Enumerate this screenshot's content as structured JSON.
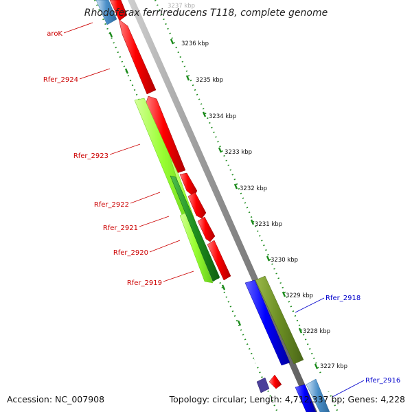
{
  "title": "Rhodoferax ferrireducens T118, complete genome",
  "footer": {
    "accession": "Accession: NC_007908",
    "topology": "Topology: circular; Length: 4,712,337 bp; Genes: 4,228"
  },
  "scale_labels": [
    "3237 kbp",
    "3236 kbp",
    "3235 kbp",
    "3234 kbp",
    "3233 kbp",
    "3232 kbp",
    "3231 kbp",
    "3230 kbp",
    "3229 kbp",
    "3228 kbp",
    "3227 kbp"
  ],
  "gene_labels": {
    "arok": "aroK",
    "rfer_2924": "Rfer_2924",
    "rfer_2923": "Rfer_2923",
    "rfer_2922": "Rfer_2922",
    "rfer_2921": "Rfer_2921",
    "rfer_2920": "Rfer_2920",
    "rfer_2919": "Rfer_2919",
    "rfer_2918": "Rfer_2918",
    "rfer_2916": "Rfer_2916"
  },
  "colors": {
    "red": "#ff0000",
    "lime": "#99ff33",
    "green": "#1e8f1e",
    "blue": "#0000ff",
    "olive": "#6b8e23",
    "steelblue": "#4a8fc8",
    "purple": "#4b3f9a",
    "axis": "#8c8c8c",
    "tick": "#1a8a1a",
    "label_red": "#cc0000",
    "label_blue": "#0000cc"
  }
}
